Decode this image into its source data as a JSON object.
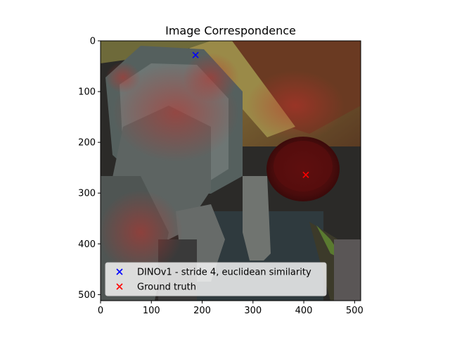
{
  "chart_data": {
    "type": "scatter",
    "title": "Image Correspondence",
    "xlabel": "",
    "ylabel": "",
    "xlim": [
      0,
      512
    ],
    "ylim": [
      512,
      0
    ],
    "xticks": [
      0,
      100,
      200,
      300,
      400,
      500
    ],
    "yticks": [
      0,
      100,
      200,
      300,
      400,
      500
    ],
    "background": "photograph (dark scene: grey octagonal object, wooden planks, dark red bowl) with red-tinted feature heatmap overlay",
    "series": [
      {
        "name": "DINOv1 - stride 4, euclidean similarity",
        "marker": "x",
        "color": "#0000ff",
        "points": [
          [
            187,
            28
          ]
        ]
      },
      {
        "name": "Ground truth",
        "marker": "x",
        "color": "#ff0000",
        "points": [
          [
            404,
            264
          ]
        ]
      }
    ],
    "legend": {
      "placement": "lower-left"
    },
    "grid": false
  }
}
